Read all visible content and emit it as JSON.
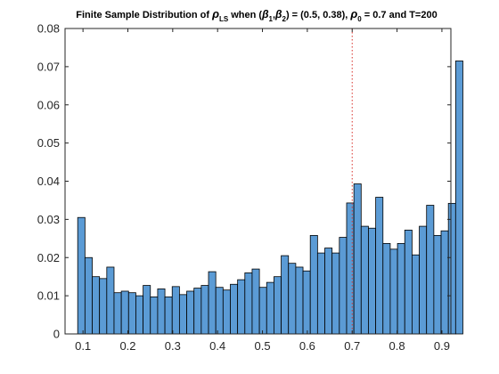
{
  "chart_data": {
    "type": "bar",
    "subtype": "histogram",
    "title": {
      "part1": "Finite Sample Distribution of ",
      "rho": "ρ",
      "ls_sub": "LS",
      "part2": " when (",
      "beta": "β",
      "sub1": "1",
      "comma": ",",
      "sub2": "2",
      "part3": ") = (0.5, 0.38),  ",
      "sub0": "0",
      "part4": " = 0.7 and T=200"
    },
    "xlabel": "",
    "ylabel": "",
    "xlim": [
      0.06,
      0.92
    ],
    "ylim": [
      0,
      0.08
    ],
    "x_ticks": [
      "0.1",
      "0.2",
      "0.3",
      "0.4",
      "0.5",
      "0.6",
      "0.7",
      "0.8",
      "0.9"
    ],
    "x_tick_values": [
      0.1,
      0.2,
      0.3,
      0.4,
      0.5,
      0.6,
      0.7,
      0.8,
      0.9
    ],
    "y_ticks": [
      "0",
      "0.01",
      "0.02",
      "0.03",
      "0.04",
      "0.05",
      "0.06",
      "0.07",
      "0.08"
    ],
    "y_tick_values": [
      0,
      0.01,
      0.02,
      0.03,
      0.04,
      0.05,
      0.06,
      0.07,
      0.08
    ],
    "bin_start": 0.0882,
    "bin_width": 0.0162,
    "values": [
      0.0305,
      0.02,
      0.015,
      0.0145,
      0.0175,
      0.0108,
      0.0112,
      0.0108,
      0.01,
      0.0127,
      0.0097,
      0.0118,
      0.0097,
      0.0124,
      0.0103,
      0.0112,
      0.012,
      0.0127,
      0.0163,
      0.0122,
      0.0115,
      0.013,
      0.0142,
      0.016,
      0.017,
      0.0122,
      0.0135,
      0.015,
      0.0205,
      0.0185,
      0.0175,
      0.0165,
      0.0258,
      0.0212,
      0.0225,
      0.0212,
      0.0253,
      0.0343,
      0.0393,
      0.0282,
      0.0277,
      0.0358,
      0.0237,
      0.0222,
      0.0237,
      0.0272,
      0.0207,
      0.0282,
      0.0337,
      0.0258,
      0.027,
      0.0342,
      0.0715
    ],
    "reference_line": {
      "x": 0.7,
      "style": "dotted"
    },
    "grid": false,
    "legend": "none",
    "colors": {
      "bar_fill": "#5b9bd5",
      "bar_edge": "#000000",
      "reference_line": "#d9302a",
      "axis": "#262626",
      "background": "#ffffff"
    }
  }
}
